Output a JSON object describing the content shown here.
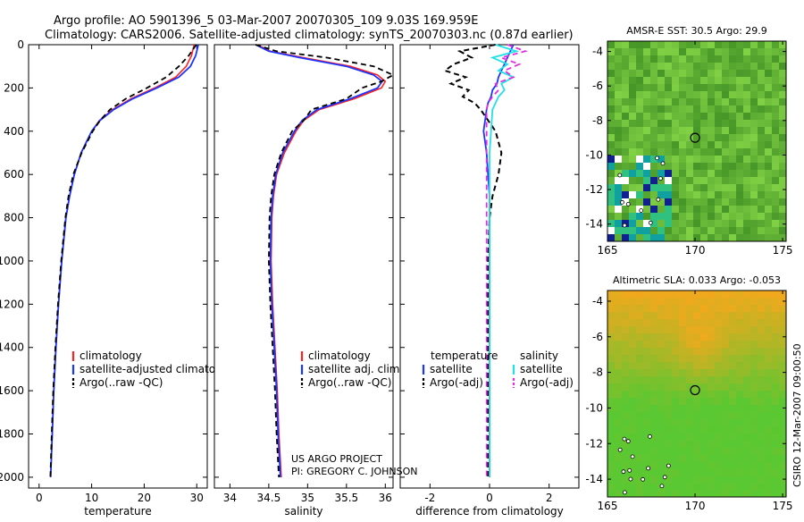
{
  "header": {
    "line1": "Argo profile: AO 5901396_5 03-Mar-2007 20070305_109 9.03S 169.959E",
    "line2": "Climatology: CARS2006. Satellite-adjusted climatology: synTS_20070303.nc (0.87d earlier)"
  },
  "credit": {
    "project": "US ARGO PROJECT",
    "pi": "PI: GREGORY C. JOHNSON",
    "side": "CSIRO 12-Mar-2007 09:00:50"
  },
  "colors": {
    "climatology": "#ff2020",
    "satellite": "#1a35ff",
    "argo": "#000000",
    "salinity_sat": "#22e0e8",
    "salinity_argo": "#e030e0",
    "map_sst_base": "#50c040",
    "map_sla_base": "#60c838",
    "map_sla_high": "#f0c020"
  },
  "chart_data": [
    {
      "type": "line",
      "title": "",
      "xlabel": "temperature",
      "ylabel": "",
      "xlim": [
        -2,
        32
      ],
      "ylim": [
        2050,
        0
      ],
      "xticks": [
        0,
        10,
        20,
        30
      ],
      "yticks": [
        0,
        200,
        400,
        600,
        800,
        1000,
        1200,
        1400,
        1600,
        1800,
        2000
      ],
      "legend": [
        "climatology",
        "satellite-adjusted climatology",
        "Argo(..raw -QC)"
      ],
      "legend_position": "bottom-left",
      "depth": [
        0,
        50,
        100,
        150,
        200,
        250,
        300,
        350,
        400,
        500,
        600,
        700,
        800,
        1000,
        1200,
        1400,
        1600,
        1800,
        2000
      ],
      "series": [
        {
          "name": "climatology",
          "values": [
            29.5,
            29.0,
            28.0,
            26.0,
            22.0,
            17.5,
            14.0,
            11.5,
            10.0,
            8.0,
            6.7,
            5.8,
            5.1,
            4.3,
            3.7,
            3.2,
            2.8,
            2.5,
            2.2
          ]
        },
        {
          "name": "satellite-adjusted climatology",
          "values": [
            30.3,
            29.8,
            28.8,
            26.6,
            22.4,
            17.8,
            14.2,
            11.6,
            10.0,
            8.0,
            6.7,
            5.8,
            5.1,
            4.3,
            3.7,
            3.2,
            2.8,
            2.5,
            2.2
          ]
        },
        {
          "name": "Argo(..raw -QC)",
          "values": [
            29.9,
            28.5,
            26.6,
            24.2,
            20.5,
            16.5,
            13.5,
            11.6,
            10.2,
            8.1,
            6.5,
            5.6,
            5.0,
            4.2,
            3.6,
            3.1,
            2.7,
            2.4,
            2.15
          ]
        }
      ]
    },
    {
      "type": "line",
      "title": "",
      "xlabel": "salinity",
      "ylabel": "",
      "xlim": [
        33.8,
        36.1
      ],
      "ylim": [
        2050,
        0
      ],
      "xticks": [
        34,
        34.5,
        35,
        35.5,
        36
      ],
      "legend": [
        "climatology",
        "satellite adj. clim.",
        "Argo(..raw -QC)"
      ],
      "legend_position": "bottom-center",
      "depth": [
        0,
        30,
        60,
        100,
        140,
        170,
        200,
        250,
        300,
        350,
        400,
        500,
        600,
        700,
        800,
        1000,
        1200,
        1400,
        1600,
        1800,
        2000
      ],
      "series": [
        {
          "name": "climatology",
          "values": [
            34.35,
            34.52,
            34.95,
            35.55,
            35.9,
            36.0,
            35.95,
            35.6,
            35.15,
            34.95,
            34.85,
            34.7,
            34.6,
            34.56,
            34.54,
            34.53,
            34.55,
            34.58,
            34.61,
            34.63,
            34.66
          ]
        },
        {
          "name": "satellite adj. clim.",
          "values": [
            34.33,
            34.5,
            34.9,
            35.5,
            35.85,
            35.96,
            35.9,
            35.55,
            35.12,
            34.93,
            34.83,
            34.68,
            34.59,
            34.55,
            34.53,
            34.52,
            34.54,
            34.57,
            34.6,
            34.62,
            34.65
          ]
        },
        {
          "name": "Argo(..raw -QC)",
          "values": [
            34.33,
            34.6,
            35.25,
            35.85,
            36.1,
            35.95,
            35.7,
            35.5,
            35.05,
            34.95,
            34.8,
            34.66,
            34.57,
            34.53,
            34.51,
            34.5,
            34.52,
            34.55,
            34.58,
            34.6,
            34.63
          ]
        }
      ]
    },
    {
      "type": "line",
      "title": "",
      "xlabel": "difference from climatology",
      "ylabel": "",
      "xlim": [
        -3,
        3
      ],
      "ylim": [
        2050,
        0
      ],
      "xticks": [
        -2,
        0,
        2
      ],
      "legend": [
        "temperature",
        "satellite",
        "Argo(-adj)",
        "salinity",
        "satellite",
        "Argo(-adj)"
      ],
      "legend_position": "bottom",
      "depth": [
        0,
        30,
        60,
        90,
        120,
        150,
        180,
        210,
        240,
        270,
        300,
        400,
        500,
        600,
        700,
        800,
        1000,
        1500,
        2000
      ],
      "series": [
        {
          "name": "temperature satellite",
          "values": [
            0.8,
            0.7,
            0.6,
            0.5,
            0.4,
            0.3,
            0.25,
            0.1,
            0.05,
            -0.05,
            -0.1,
            -0.2,
            -0.1,
            -0.05,
            0.0,
            0.0,
            0.0,
            0.0,
            0.0
          ]
        },
        {
          "name": "temperature Argo(-adj)",
          "values": [
            0.2,
            -1.0,
            -0.6,
            -1.2,
            -1.5,
            -0.8,
            -1.3,
            -0.7,
            -0.9,
            -0.5,
            -0.3,
            0.2,
            0.4,
            0.3,
            0.1,
            0.0,
            -0.05,
            -0.05,
            -0.05
          ]
        },
        {
          "name": "salinity satellite",
          "values": [
            0.2,
            0.9,
            0.1,
            0.6,
            0.3,
            0.8,
            0.4,
            0.5,
            0.3,
            0.2,
            0.1,
            0.05,
            0.0,
            0.0,
            0.0,
            0.0,
            0.0,
            0.0,
            0.0
          ]
        },
        {
          "name": "salinity Argo(-adj)",
          "values": [
            0.6,
            1.2,
            0.4,
            1.0,
            0.5,
            0.8,
            0.2,
            0.3,
            0.1,
            -0.05,
            -0.1,
            -0.1,
            -0.1,
            -0.1,
            -0.1,
            -0.1,
            -0.1,
            -0.1,
            -0.1
          ]
        }
      ]
    },
    {
      "type": "heatmap",
      "title": "AMSR-E SST: 30.5 Argo: 29.9",
      "xlabel": "",
      "ylabel": "",
      "xlim": [
        165,
        175.2
      ],
      "ylim": [
        -15,
        -3.4
      ],
      "xticks": [
        165,
        170,
        175
      ],
      "yticks": [
        -4,
        -6,
        -8,
        -10,
        -12,
        -14
      ],
      "float_position": [
        170,
        -9
      ]
    },
    {
      "type": "heatmap",
      "title": "Altimetric SLA: 0.033 Argo: -0.053",
      "xlabel": "",
      "ylabel": "",
      "xlim": [
        165,
        175.2
      ],
      "ylim": [
        -15,
        -3.4
      ],
      "xticks": [
        165,
        170,
        175
      ],
      "yticks": [
        -4,
        -6,
        -8,
        -10,
        -12,
        -14
      ],
      "float_position": [
        170,
        -9
      ]
    }
  ]
}
